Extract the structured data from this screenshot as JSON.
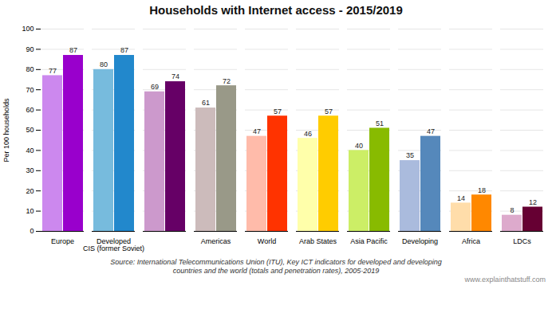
{
  "chart_data": {
    "type": "bar",
    "title": "Households with Internet access - 2015/2019",
    "ylabel": "Per 100 households",
    "categories": [
      "Europe",
      "Developed\nCIS (former Soviet)",
      null,
      "Americas",
      "World",
      "Arab States",
      "Asia Pacific",
      "Developing",
      "Africa",
      "LDCs"
    ],
    "series": [
      {
        "values": [
          77,
          80,
          69,
          61,
          47,
          46,
          40,
          35,
          14,
          8
        ],
        "colors": [
          "#cc88ee",
          "#77bbdd",
          "#cc99cc",
          "#ccbbbb",
          "#ffbbaa",
          "#ffffaa",
          "#ccee66",
          "#aabbdd",
          "#ffddaa",
          "#ddaacc"
        ]
      },
      {
        "values": [
          87,
          87,
          74,
          72,
          57,
          57,
          51,
          47,
          18,
          12
        ],
        "colors": [
          "#9900cc",
          "#2288cc",
          "#660066",
          "#999988",
          "#ff3300",
          "#ffcc00",
          "#88bb00",
          "#5588bb",
          "#ff8800",
          "#660033"
        ]
      }
    ],
    "ylim": [
      0,
      100
    ],
    "yticks": [
      0,
      10,
      20,
      30,
      40,
      50,
      60,
      70,
      80,
      90,
      100
    ],
    "grid": true,
    "data_labels": true,
    "source": "Source: International Telecommunications Union (ITU), Key ICT indicators for developed and developing\ncountries and the world (totals and penetration rates), 2005-2019",
    "watermark": "www.explainthatstuff.com"
  }
}
